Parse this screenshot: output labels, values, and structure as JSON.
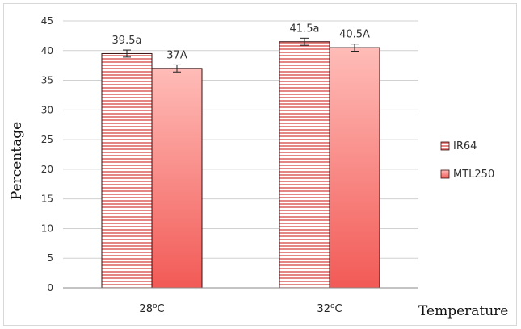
{
  "chart_data": {
    "type": "bar",
    "title": "",
    "xlabel": "Temperature",
    "ylabel": "Percentage",
    "ylim": [
      0,
      45
    ],
    "yticks": [
      "0",
      "5",
      "10",
      "15",
      "20",
      "25",
      "30",
      "35",
      "40",
      "45"
    ],
    "grid": true,
    "legend_position": "right",
    "categories": [
      {
        "base": "28",
        "sup": "o",
        "unit": "C"
      },
      {
        "base": "32",
        "sup": "o",
        "unit": "C"
      }
    ],
    "series": [
      {
        "name": "IR64",
        "values": [
          39.5,
          41.5
        ],
        "errors": [
          0.6,
          0.6
        ],
        "data_labels": [
          "39.5a",
          "41.5a"
        ],
        "pattern": "horizontal-stripes",
        "color": "#c0392b"
      },
      {
        "name": "MTL250",
        "values": [
          37,
          40.5
        ],
        "errors": [
          0.6,
          0.6
        ],
        "data_labels": [
          "37A",
          "40.5A"
        ],
        "pattern": "gradient",
        "color": "#f0625e"
      }
    ]
  }
}
